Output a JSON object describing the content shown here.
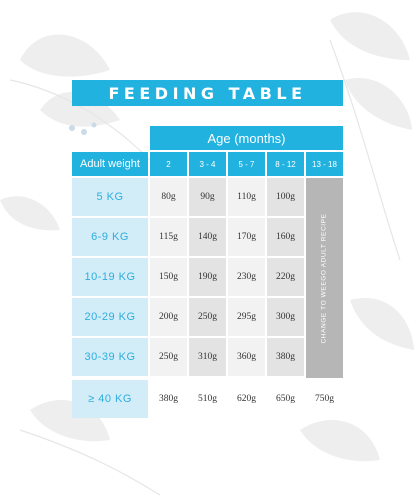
{
  "title": "FEEDING TABLE",
  "age_header": "Age (months)",
  "adult_weight_header": "Adult weight",
  "age_columns": [
    "2",
    "3 - 4",
    "5 - 7",
    "8 - 12",
    "13 - 18"
  ],
  "rows": [
    {
      "weight": "5 KG",
      "values": [
        "80g",
        "90g",
        "110g",
        "100g"
      ]
    },
    {
      "weight": "6-9 KG",
      "values": [
        "115g",
        "140g",
        "170g",
        "160g"
      ]
    },
    {
      "weight": "10-19 KG",
      "values": [
        "150g",
        "190g",
        "230g",
        "220g"
      ]
    },
    {
      "weight": "20-29 KG",
      "values": [
        "200g",
        "250g",
        "295g",
        "300g"
      ]
    },
    {
      "weight": "30-39 KG",
      "values": [
        "250g",
        "310g",
        "360g",
        "380g"
      ]
    },
    {
      "weight": "≥ 40 KG",
      "values": [
        "380g",
        "510g",
        "620g",
        "650g",
        "750g"
      ]
    }
  ],
  "change_recipe_label": "CHANGE TO WEEGO ADULT RECIPE",
  "colors": {
    "accent": "#22b2e0",
    "weight_cell": "#d2ecf8",
    "change_cell": "#b6b6b6"
  }
}
